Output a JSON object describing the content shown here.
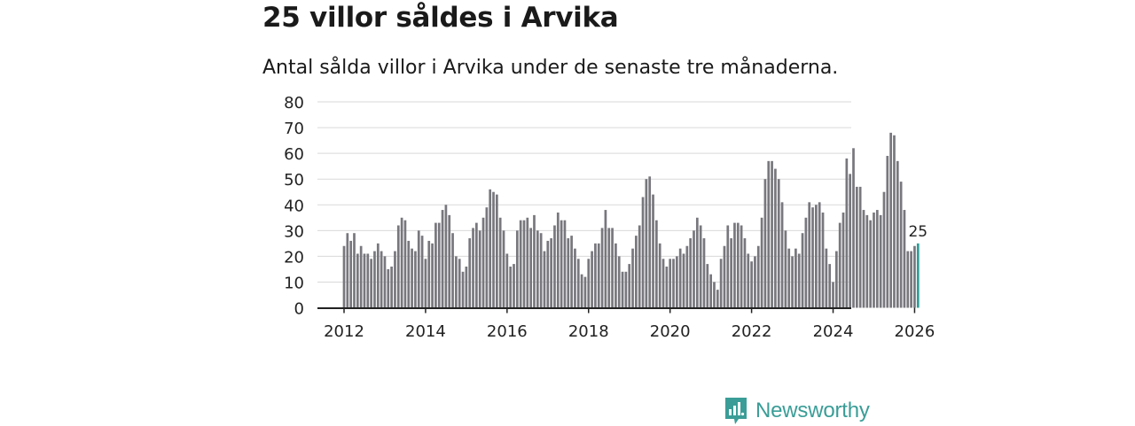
{
  "title": "25 villor såldes i Arvika",
  "subtitle": "Antal sålda villor i Arvika under de senaste tre månaderna.",
  "brand": "Newsworthy",
  "colors": {
    "bar": "#77777d",
    "highlight": "#2a9d98",
    "grid": "#d9d9d9",
    "axis": "#222222",
    "brand": "#3a9d97"
  },
  "chart_data": {
    "type": "bar",
    "title": "25 villor såldes i Arvika",
    "xlabel": "",
    "ylabel": "",
    "ylim": [
      0,
      80
    ],
    "yticks": [
      0,
      10,
      20,
      30,
      40,
      50,
      60,
      70,
      80
    ],
    "xticks": [
      "2012",
      "2014",
      "2016",
      "2018",
      "2020",
      "2022",
      "2024",
      "2026"
    ],
    "start": "2012-01",
    "end_label": "25",
    "values": [
      24,
      29,
      26,
      29,
      21,
      24,
      21,
      21,
      19,
      22,
      25,
      22,
      20,
      15,
      16,
      22,
      32,
      35,
      34,
      26,
      23,
      22,
      30,
      28,
      19,
      26,
      25,
      33,
      33,
      38,
      40,
      36,
      29,
      20,
      19,
      14,
      16,
      27,
      31,
      33,
      30,
      35,
      39,
      46,
      45,
      44,
      35,
      30,
      21,
      16,
      17,
      30,
      34,
      34,
      35,
      31,
      36,
      30,
      29,
      22,
      26,
      27,
      32,
      37,
      34,
      34,
      27,
      28,
      23,
      19,
      13,
      12,
      19,
      22,
      25,
      25,
      31,
      38,
      31,
      31,
      25,
      20,
      14,
      14,
      17,
      23,
      28,
      32,
      43,
      50,
      51,
      44,
      34,
      25,
      19,
      16,
      19,
      19,
      20,
      23,
      21,
      24,
      27,
      30,
      35,
      32,
      27,
      17,
      13,
      10,
      7,
      19,
      24,
      32,
      27,
      33,
      33,
      32,
      27,
      21,
      18,
      20,
      24,
      35,
      50,
      57,
      57,
      54,
      50,
      41,
      30,
      23,
      20,
      23,
      21,
      29,
      35,
      41,
      39,
      40,
      41,
      37,
      23,
      17,
      10,
      22,
      33,
      37,
      58,
      52,
      62,
      47,
      47,
      38,
      36,
      34,
      37,
      38,
      36,
      45,
      59,
      68,
      67,
      57,
      49,
      38,
      22,
      22,
      24,
      25
    ]
  }
}
